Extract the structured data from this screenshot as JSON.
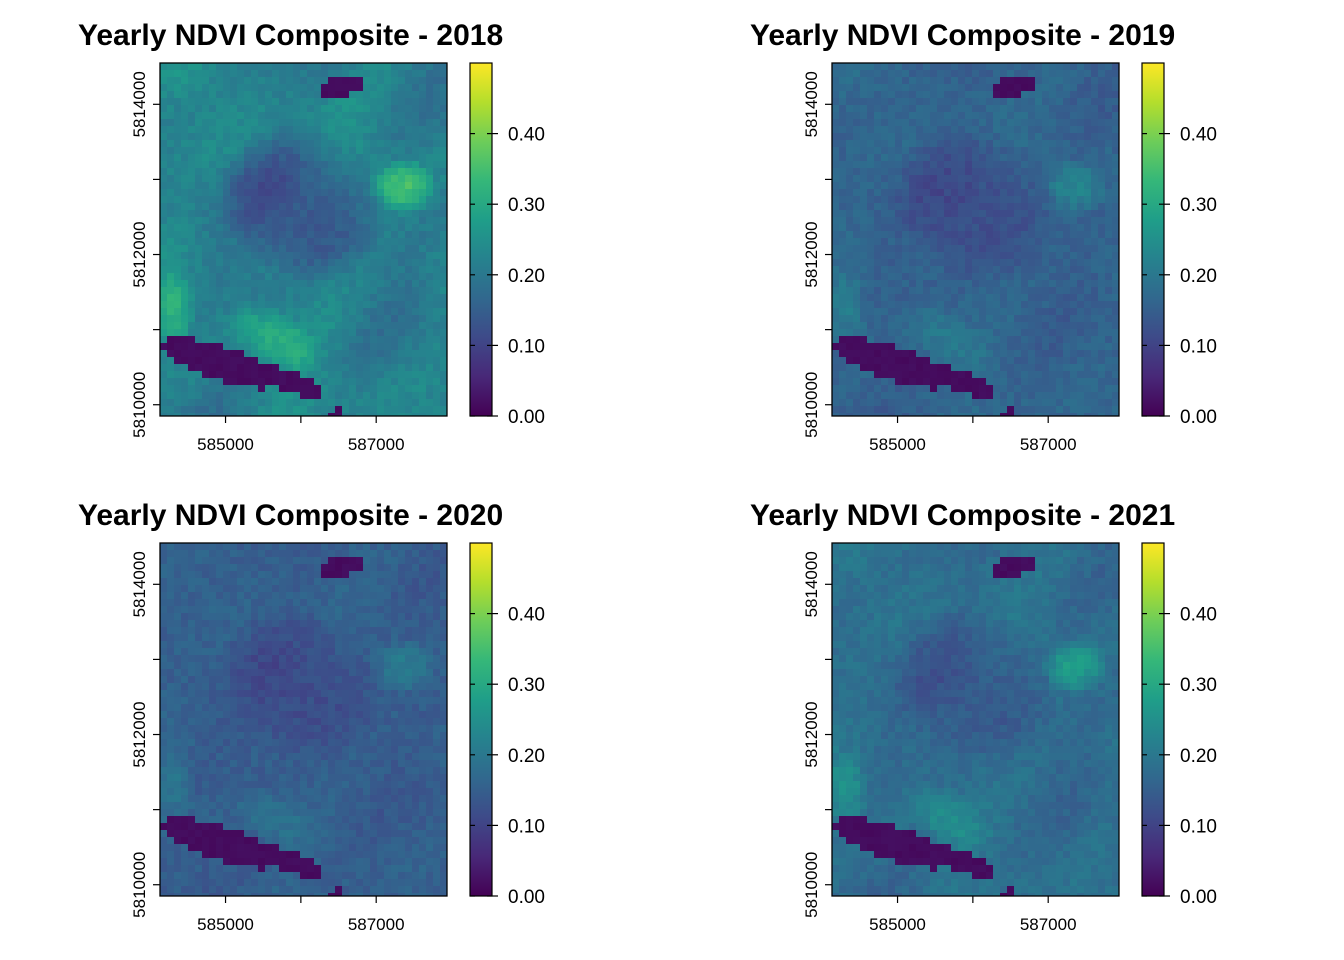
{
  "palette": {
    "name": "viridis",
    "stops": [
      "#440154",
      "#482878",
      "#3E4A89",
      "#31688E",
      "#26828E",
      "#1F9E89",
      "#35B779",
      "#6DCD59",
      "#B4DE2C",
      "#FDE725"
    ]
  },
  "chart_data": [
    {
      "type": "heatmap",
      "title": "Yearly NDVI Composite - 2018",
      "year": "2018",
      "xlim": [
        584130,
        587940
      ],
      "ylim": [
        5809850,
        5814550
      ],
      "xticks": [
        585000,
        586000,
        587000
      ],
      "xtick_labels": [
        "585000",
        "",
        "587000"
      ],
      "yticks": [
        5810000,
        5811000,
        5812000,
        5813000,
        5814000
      ],
      "ytick_labels": [
        "5810000",
        "",
        "5812000",
        "",
        "5814000"
      ],
      "colorbar": {
        "range": [
          0,
          0.5
        ],
        "ticks": [
          0.0,
          0.1,
          0.2,
          0.3,
          0.4
        ],
        "labels": [
          "0.00",
          "0.10",
          "0.20",
          "0.30",
          "0.40"
        ]
      },
      "approx_mean_ndvi": 0.22
    },
    {
      "type": "heatmap",
      "title": "Yearly NDVI Composite - 2019",
      "year": "2019",
      "xlim": [
        584130,
        587940
      ],
      "ylim": [
        5809850,
        5814550
      ],
      "xticks": [
        585000,
        586000,
        587000
      ],
      "xtick_labels": [
        "585000",
        "",
        "587000"
      ],
      "yticks": [
        5810000,
        5811000,
        5812000,
        5813000,
        5814000
      ],
      "ytick_labels": [
        "5810000",
        "",
        "5812000",
        "",
        "5814000"
      ],
      "colorbar": {
        "range": [
          0,
          0.5
        ],
        "ticks": [
          0.0,
          0.1,
          0.2,
          0.3,
          0.4
        ],
        "labels": [
          "0.00",
          "0.10",
          "0.20",
          "0.30",
          "0.40"
        ]
      },
      "approx_mean_ndvi": 0.16
    },
    {
      "type": "heatmap",
      "title": "Yearly NDVI Composite - 2020",
      "year": "2020",
      "xlim": [
        584130,
        587940
      ],
      "ylim": [
        5809850,
        5814550
      ],
      "xticks": [
        585000,
        586000,
        587000
      ],
      "xtick_labels": [
        "585000",
        "",
        "587000"
      ],
      "yticks": [
        5810000,
        5811000,
        5812000,
        5813000,
        5814000
      ],
      "ytick_labels": [
        "5810000",
        "",
        "5812000",
        "",
        "5814000"
      ],
      "colorbar": {
        "range": [
          0,
          0.5
        ],
        "ticks": [
          0.0,
          0.1,
          0.2,
          0.3,
          0.4
        ],
        "labels": [
          "0.00",
          "0.10",
          "0.20",
          "0.30",
          "0.40"
        ]
      },
      "approx_mean_ndvi": 0.15
    },
    {
      "type": "heatmap",
      "title": "Yearly NDVI Composite - 2021",
      "year": "2021",
      "xlim": [
        584130,
        587940
      ],
      "ylim": [
        5809850,
        5814550
      ],
      "xticks": [
        585000,
        586000,
        587000
      ],
      "xtick_labels": [
        "585000",
        "",
        "587000"
      ],
      "yticks": [
        5810000,
        5811000,
        5812000,
        5813000,
        5814000
      ],
      "ytick_labels": [
        "5810000",
        "",
        "5812000",
        "",
        "5814000"
      ],
      "colorbar": {
        "range": [
          0,
          0.5
        ],
        "ticks": [
          0.0,
          0.1,
          0.2,
          0.3,
          0.4
        ],
        "labels": [
          "0.00",
          "0.10",
          "0.20",
          "0.30",
          "0.40"
        ]
      },
      "approx_mean_ndvi": 0.18
    }
  ]
}
